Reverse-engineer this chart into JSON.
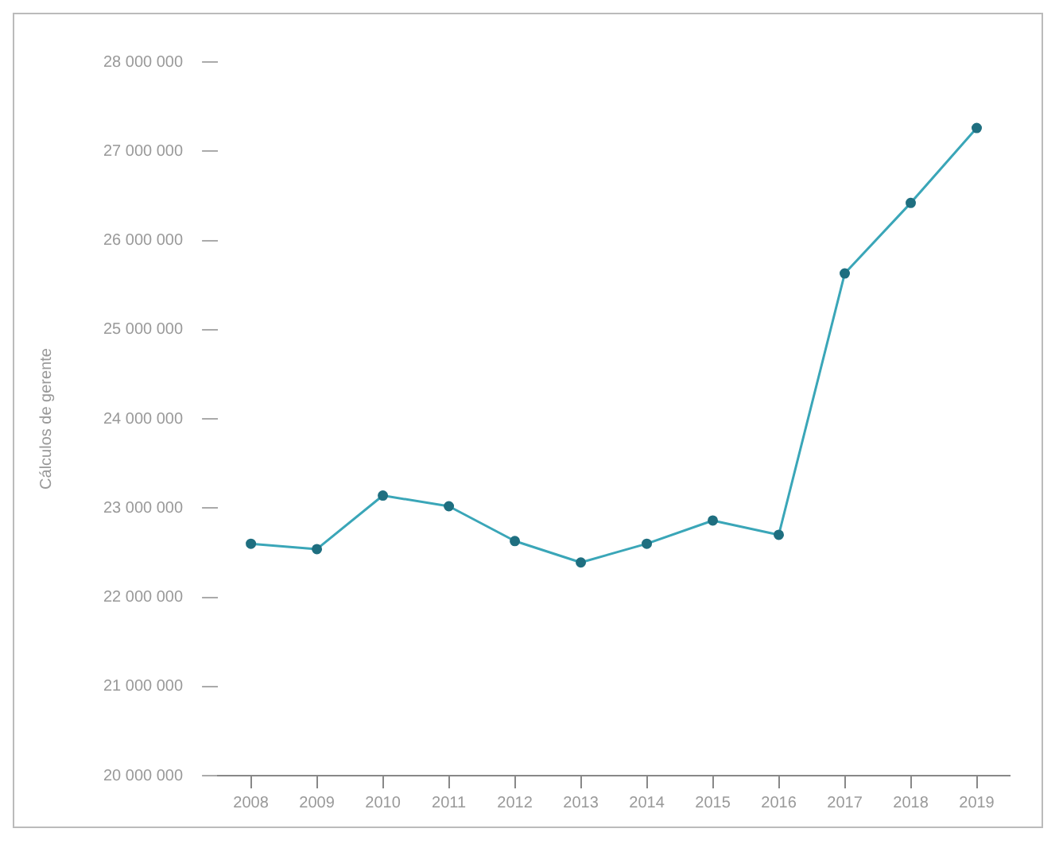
{
  "chart_data": {
    "type": "line",
    "ylabel": "Cálculos de gerente",
    "categories": [
      "2008",
      "2009",
      "2010",
      "2011",
      "2012",
      "2013",
      "2014",
      "2015",
      "2016",
      "2017",
      "2018",
      "2019"
    ],
    "series": [
      {
        "color": "#3aa6b8",
        "values": [
          22600000,
          22540000,
          23140000,
          23020000,
          22630000,
          22390000,
          22600000,
          22860000,
          22700000,
          25630000,
          26420000,
          27260000
        ]
      }
    ],
    "ylim": [
      20000000,
      28000000
    ],
    "yticks": [
      {
        "value": 20000000,
        "label": "20 000 000"
      },
      {
        "value": 21000000,
        "label": "21 000 000"
      },
      {
        "value": 22000000,
        "label": "22 000 000"
      },
      {
        "value": 23000000,
        "label": "23 000 000"
      },
      {
        "value": 24000000,
        "label": "24 000 000"
      },
      {
        "value": 25000000,
        "label": "25 000 000"
      },
      {
        "value": 26000000,
        "label": "26 000 000"
      },
      {
        "value": 27000000,
        "label": "27 000 000"
      },
      {
        "value": 28000000,
        "label": "28 000 000"
      }
    ],
    "grid": false,
    "legend": false,
    "marker": "circle",
    "line_style": "solid"
  }
}
